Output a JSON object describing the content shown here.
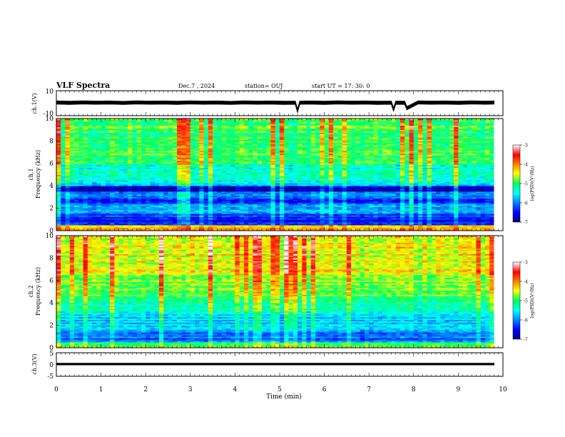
{
  "header": {
    "title": "VLF Spectra",
    "date": "Dec.7  , 2024",
    "station": "station= OUJ",
    "start": "start  UT  =   17: 30: 0"
  },
  "chart_data": [
    {
      "type": "line",
      "ylabel": "ch.1(V)",
      "ylim": [
        -10,
        10
      ],
      "yticks": [
        "10",
        "-10"
      ],
      "xlim": [
        0,
        10
      ],
      "x": [
        0,
        0.3,
        0.6,
        0.9,
        1.2,
        1.5,
        1.8,
        2.1,
        2.4,
        2.7,
        3.0,
        3.3,
        3.6,
        3.9,
        4.2,
        4.5,
        4.8,
        5.1,
        5.35,
        5.4,
        5.45,
        5.7,
        6.0,
        6.3,
        6.6,
        6.9,
        7.2,
        7.5,
        7.55,
        7.6,
        7.8,
        7.85,
        8.1,
        8.4,
        8.7,
        9.0,
        9.3,
        9.6,
        9.8
      ],
      "y": [
        0.5,
        0.3,
        0.6,
        0.4,
        0.5,
        0.2,
        0.6,
        0.4,
        0.5,
        0.3,
        0.6,
        0.4,
        0.5,
        0.2,
        0.6,
        0.4,
        0.5,
        0.3,
        0.4,
        -6,
        0.4,
        0.5,
        0.3,
        0.6,
        0.4,
        0.5,
        0.3,
        0.4,
        -5,
        0.4,
        0.3,
        -4,
        0.6,
        0.4,
        0.5,
        0.3,
        0.6,
        0.4,
        0.5
      ],
      "band": 2.5
    },
    {
      "type": "heatmap",
      "ylabel": "ch.1",
      "ylabel2": "Frequency  (kHz)",
      "ylim": [
        0,
        10
      ],
      "yticks": [
        "0",
        "2",
        "4",
        "6",
        "8",
        "10"
      ],
      "xlim": [
        0,
        9.8
      ],
      "colorbar": {
        "label": "log(PSD)(V²/Hz)",
        "range": [
          -7,
          -3
        ],
        "ticks": [
          "-3",
          "-4",
          "-5",
          "-6",
          "-7"
        ]
      },
      "frequency_kHz": [
        0.25,
        0.75,
        1.25,
        1.75,
        2.25,
        2.75,
        3.25,
        3.75,
        4.25,
        4.75,
        5.25,
        5.75,
        6.25,
        6.75,
        7.25,
        7.75,
        8.25,
        8.75,
        9.25,
        9.75
      ],
      "mean_log_psd": [
        -4.2,
        -6.4,
        -6.3,
        -5.8,
        -6.0,
        -6.3,
        -6.1,
        -6.7,
        -5.6,
        -5.2,
        -5.2,
        -5.3,
        -5.1,
        -5.0,
        -4.9,
        -4.8,
        -4.9,
        -5.0,
        -4.9,
        -4.9
      ]
    },
    {
      "type": "heatmap",
      "ylabel": "ch.2",
      "ylabel2": "Frequency  (kHz)",
      "ylim": [
        0,
        10
      ],
      "yticks": [
        "0",
        "2",
        "4",
        "6",
        "8",
        "10"
      ],
      "xlim": [
        0,
        9.8
      ],
      "colorbar": {
        "label": "log(PSD)(V²/Hz)",
        "range": [
          -7,
          -3
        ],
        "ticks": [
          "-3",
          "-4",
          "-5",
          "-6",
          "-7"
        ]
      },
      "frequency_kHz": [
        0.25,
        0.75,
        1.25,
        1.75,
        2.25,
        2.75,
        3.25,
        3.75,
        4.25,
        4.75,
        5.25,
        5.75,
        6.25,
        6.75,
        7.25,
        7.75,
        8.25,
        8.75,
        9.25,
        9.75
      ],
      "mean_log_psd": [
        -4.8,
        -6.1,
        -6.0,
        -5.7,
        -5.8,
        -5.7,
        -5.4,
        -5.2,
        -5.0,
        -4.9,
        -4.8,
        -4.7,
        -4.6,
        -4.5,
        -4.5,
        -4.4,
        -4.5,
        -4.5,
        -4.4,
        -4.4
      ]
    },
    {
      "type": "line",
      "ylabel": "ch.3(V)",
      "ylim": [
        -5,
        5
      ],
      "yticks": [
        "5",
        "0",
        "-5"
      ],
      "xlim": [
        0,
        10
      ],
      "x": [
        0,
        9.8
      ],
      "y": [
        0.2,
        0.2
      ],
      "band": 0.7,
      "xlabel": "Time  (min)",
      "xticks": [
        "0",
        "1",
        "2",
        "3",
        "4",
        "5",
        "6",
        "7",
        "8",
        "9",
        "10"
      ]
    }
  ]
}
